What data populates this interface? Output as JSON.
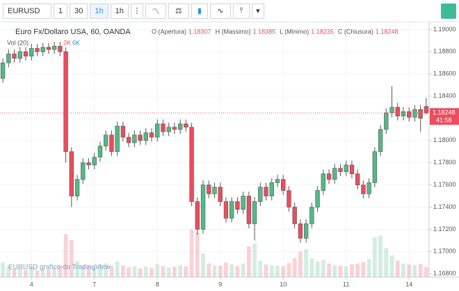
{
  "toolbar": {
    "symbol": "EURUSD",
    "intervals": [
      "1",
      "30",
      "1h",
      "1h"
    ]
  },
  "chart_data": {
    "type": "candlestick",
    "title": "Euro Fx/Dollaro USA, 60, OANDA",
    "ohlc": [
      {
        "label": "O (Apertura)",
        "value": 1.18307
      },
      {
        "label": "H (Massimo)",
        "value": 1.18385
      },
      {
        "label": "L (Minimo)",
        "value": 1.18235
      },
      {
        "label": "C (Chiusura)",
        "value": 1.18248
      }
    ],
    "volume_title": "Vol (20)",
    "volume_stats": [
      "2K",
      "6K"
    ],
    "watermark": "EURUSD grafico da TradingView",
    "last_price": 1.18248,
    "countdown": "41:58",
    "up_color": "#53b987",
    "down_color": "#eb4d5c",
    "open": [
      1.1856,
      1.187,
      1.1878,
      1.1874,
      1.188,
      1.1876,
      1.1883,
      1.188,
      1.1884,
      1.1882,
      1.1885,
      1.188,
      1.179,
      1.175,
      1.1765,
      1.178,
      1.1778,
      1.1785,
      1.1795,
      1.1805,
      1.179,
      1.1813,
      1.1803,
      1.1798,
      1.1805,
      1.18,
      1.1807,
      1.1803,
      1.1815,
      1.1808,
      1.1812,
      1.181,
      1.1815,
      1.1812,
      1.1745,
      1.172,
      1.176,
      1.1752,
      1.1758,
      1.1745,
      1.173,
      1.1745,
      1.1738,
      1.175,
      1.1725,
      1.1745,
      1.1758,
      1.175,
      1.1762,
      1.1765,
      1.1755,
      1.174,
      1.1725,
      1.1712,
      1.1725,
      1.174,
      1.1755,
      1.177,
      1.1765,
      1.1775,
      1.1772,
      1.1778,
      1.177,
      1.176,
      1.1752,
      1.1762,
      1.179,
      1.181,
      1.1825,
      1.183,
      1.1822,
      1.1826,
      1.1821,
      1.1828,
      1.18307
    ],
    "high": [
      1.1874,
      1.1882,
      1.1882,
      1.1884,
      1.1884,
      1.1887,
      1.1887,
      1.1888,
      1.1888,
      1.1889,
      1.1889,
      1.1884,
      1.1794,
      1.1769,
      1.1784,
      1.1784,
      1.1789,
      1.1799,
      1.1809,
      1.1809,
      1.1817,
      1.1817,
      1.1807,
      1.1809,
      1.1809,
      1.1811,
      1.1811,
      1.1819,
      1.1819,
      1.1816,
      1.1816,
      1.1819,
      1.1819,
      1.1816,
      1.1749,
      1.1764,
      1.1764,
      1.1762,
      1.1762,
      1.1749,
      1.1749,
      1.1749,
      1.1754,
      1.1754,
      1.1749,
      1.1762,
      1.1762,
      1.1766,
      1.1769,
      1.1769,
      1.1759,
      1.1744,
      1.1729,
      1.1729,
      1.1744,
      1.1759,
      1.1774,
      1.1774,
      1.1779,
      1.1779,
      1.1782,
      1.1782,
      1.1774,
      1.1764,
      1.1766,
      1.1794,
      1.1814,
      1.1829,
      1.1849,
      1.1834,
      1.183,
      1.183,
      1.1832,
      1.1832,
      1.18385
    ],
    "low": [
      1.1852,
      1.1866,
      1.187,
      1.187,
      1.1872,
      1.1872,
      1.1876,
      1.1876,
      1.1878,
      1.1878,
      1.1876,
      1.178,
      1.174,
      1.1746,
      1.1761,
      1.1774,
      1.1774,
      1.1781,
      1.1791,
      1.1786,
      1.1786,
      1.1799,
      1.1794,
      1.1794,
      1.1796,
      1.1796,
      1.1799,
      1.1799,
      1.1804,
      1.1804,
      1.1806,
      1.1806,
      1.1808,
      1.1741,
      1.1715,
      1.1716,
      1.1748,
      1.1748,
      1.1741,
      1.1726,
      1.1726,
      1.1734,
      1.1734,
      1.1721,
      1.171,
      1.1741,
      1.1746,
      1.1746,
      1.1758,
      1.1751,
      1.1736,
      1.1721,
      1.1708,
      1.1708,
      1.1721,
      1.1736,
      1.1751,
      1.1761,
      1.1761,
      1.1768,
      1.1768,
      1.1766,
      1.1756,
      1.1748,
      1.1748,
      1.1758,
      1.1786,
      1.1806,
      1.1821,
      1.1818,
      1.1818,
      1.1817,
      1.1817,
      1.1808,
      1.18235
    ],
    "close": [
      1.187,
      1.1878,
      1.1874,
      1.188,
      1.1876,
      1.1883,
      1.188,
      1.1884,
      1.1882,
      1.1885,
      1.188,
      1.179,
      1.175,
      1.1765,
      1.178,
      1.1778,
      1.1785,
      1.1795,
      1.1805,
      1.179,
      1.1813,
      1.1803,
      1.1798,
      1.1805,
      1.18,
      1.1807,
      1.1803,
      1.1815,
      1.1808,
      1.1812,
      1.181,
      1.1815,
      1.1812,
      1.1745,
      1.172,
      1.176,
      1.1752,
      1.1758,
      1.1745,
      1.173,
      1.1745,
      1.1738,
      1.175,
      1.1725,
      1.1745,
      1.1758,
      1.175,
      1.1762,
      1.1765,
      1.1755,
      1.174,
      1.1725,
      1.1712,
      1.1725,
      1.174,
      1.1755,
      1.177,
      1.1765,
      1.1775,
      1.1772,
      1.1778,
      1.177,
      1.176,
      1.1752,
      1.1762,
      1.179,
      1.181,
      1.1825,
      1.183,
      1.1822,
      1.1826,
      1.1821,
      1.1828,
      1.182,
      1.18248
    ],
    "volume": [
      3200,
      2400,
      1800,
      2000,
      1600,
      2200,
      1500,
      1800,
      1700,
      2100,
      2600,
      9500,
      8200,
      3500,
      2600,
      2400,
      2200,
      2800,
      3000,
      2500,
      3400,
      2600,
      2200,
      2400,
      1900,
      2300,
      2000,
      2800,
      2400,
      2100,
      2300,
      2600,
      2400,
      10500,
      9800,
      5200,
      3000,
      2600,
      2500,
      3200,
      2800,
      2400,
      3000,
      6800,
      7400,
      3600,
      2800,
      2600,
      2500,
      2400,
      3100,
      4200,
      5600,
      6200,
      4100,
      3500,
      3800,
      3000,
      2600,
      2500,
      2400,
      2800,
      3000,
      3300,
      4000,
      8800,
      9200,
      6400,
      4800,
      3600,
      3000,
      2800,
      2600,
      2900,
      2200
    ],
    "vlim": [
      0,
      20000
    ],
    "xlim": [
      -0.5,
      74.5
    ],
    "xticks": [
      {
        "value": 5,
        "label": "4"
      },
      {
        "value": 16,
        "label": "7"
      },
      {
        "value": 27,
        "label": "8"
      },
      {
        "value": 38,
        "label": "9"
      },
      {
        "value": 49,
        "label": "10"
      },
      {
        "value": 60,
        "label": "11"
      },
      {
        "value": 71,
        "label": "14"
      }
    ],
    "ylim": [
      1.1677,
      1.1904
    ],
    "yticks": [
      {
        "value": 1.19,
        "label": "1.19000"
      },
      {
        "value": 1.188,
        "label": "1.18800"
      },
      {
        "value": 1.186,
        "label": "1.18600"
      },
      {
        "value": 1.184,
        "label": "1.18400"
      },
      {
        "value": 1.182,
        "label": "1.18200"
      },
      {
        "value": 1.18,
        "label": "1.18000"
      },
      {
        "value": 1.178,
        "label": "1.17800"
      },
      {
        "value": 1.176,
        "label": "1.17600"
      },
      {
        "value": 1.174,
        "label": "1.17400"
      },
      {
        "value": 1.172,
        "label": "1.17200"
      },
      {
        "value": 1.17,
        "label": "1.17000"
      },
      {
        "value": 1.168,
        "label": "1.16800"
      }
    ],
    "grid": true
  }
}
